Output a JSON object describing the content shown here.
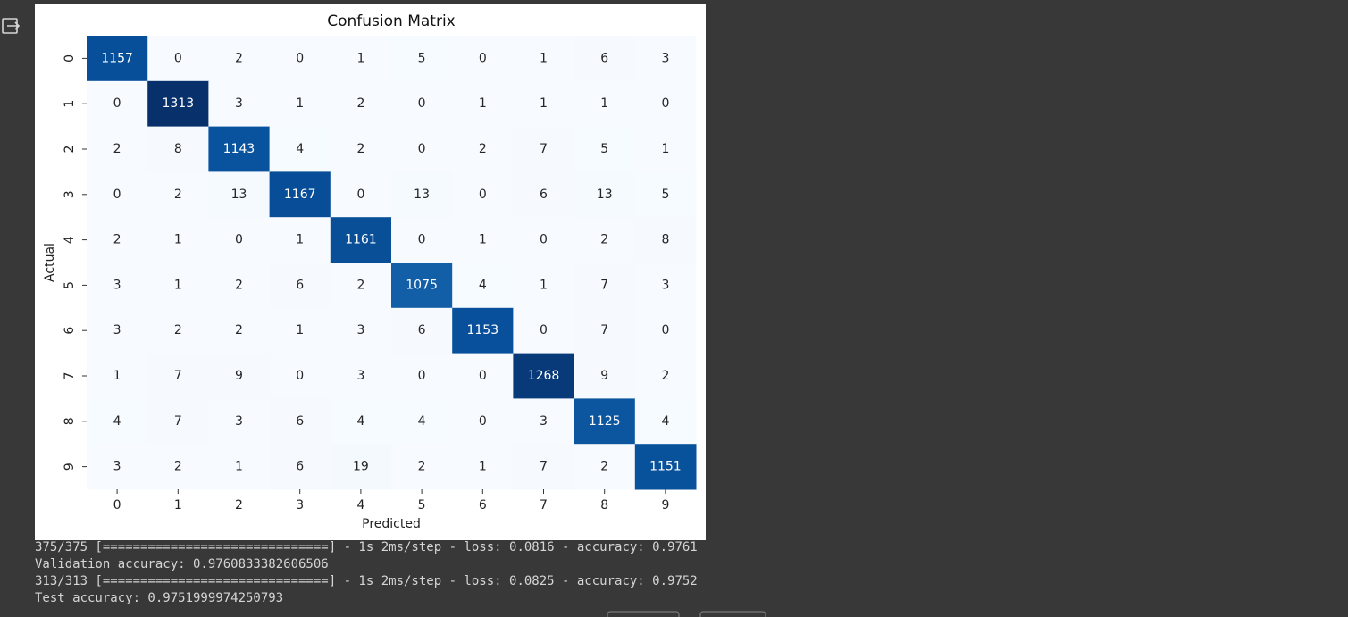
{
  "chart_data": {
    "type": "heatmap",
    "title": "Confusion Matrix",
    "x_label": "Predicted",
    "y_label": "Actual",
    "categories": [
      "0",
      "1",
      "2",
      "3",
      "4",
      "5",
      "6",
      "7",
      "8",
      "9"
    ],
    "y_categories": [
      "0",
      "1",
      "2",
      "3",
      "4",
      "5",
      "6",
      "7",
      "8",
      "9"
    ],
    "colormap": [
      "#f7fbff",
      "#deebf7",
      "#c6dbef",
      "#9ecae1",
      "#6baed6",
      "#4292c6",
      "#2171b5",
      "#08519c",
      "#08306b"
    ],
    "values": [
      [
        1157,
        0,
        2,
        0,
        1,
        5,
        0,
        1,
        6,
        3
      ],
      [
        0,
        1313,
        3,
        1,
        2,
        0,
        1,
        1,
        1,
        0
      ],
      [
        2,
        8,
        1143,
        4,
        2,
        0,
        2,
        7,
        5,
        1
      ],
      [
        0,
        2,
        13,
        1167,
        0,
        13,
        0,
        6,
        13,
        5
      ],
      [
        2,
        1,
        0,
        1,
        1161,
        0,
        1,
        0,
        2,
        8
      ],
      [
        3,
        1,
        2,
        6,
        2,
        1075,
        4,
        1,
        7,
        3
      ],
      [
        3,
        2,
        2,
        1,
        3,
        6,
        1153,
        0,
        7,
        0
      ],
      [
        1,
        7,
        9,
        0,
        3,
        0,
        0,
        1268,
        9,
        2
      ],
      [
        4,
        7,
        3,
        6,
        4,
        4,
        0,
        3,
        1125,
        4
      ],
      [
        3,
        2,
        1,
        6,
        19,
        2,
        1,
        7,
        2,
        1151
      ]
    ]
  },
  "output_lines": [
    "375/375 [==============================] - 1s 2ms/step - loss: 0.0816 - accuracy: 0.9761",
    "Validation accuracy: 0.9760833382606506",
    "313/313 [==============================] - 1s 2ms/step - loss: 0.0825 - accuracy: 0.9752",
    "Test accuracy: 0.9751999974250793"
  ]
}
